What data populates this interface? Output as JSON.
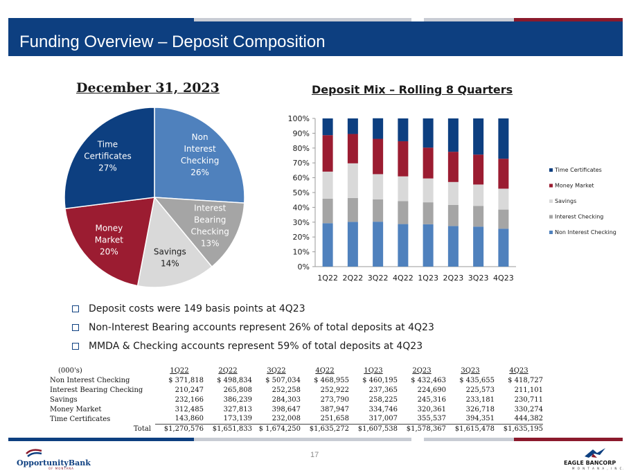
{
  "header": {
    "title": "Funding Overview – Deposit Composition"
  },
  "pie": {
    "title": "December 31, 2023",
    "slices": [
      {
        "lines": [
          "Non",
          "Interest",
          "Checking",
          "26%"
        ],
        "pct": 26,
        "color": "#4f81bd",
        "text_color": "#ffffff"
      },
      {
        "lines": [
          "Interest",
          "Bearing",
          "Checking",
          "13%"
        ],
        "pct": 13,
        "color": "#a5a5a5",
        "text_color": "#ffffff"
      },
      {
        "lines": [
          "Savings",
          "14%"
        ],
        "pct": 14,
        "color": "#d9d9d9",
        "text_color": "#1a1a1a"
      },
      {
        "lines": [
          "Money",
          "Market",
          "20%"
        ],
        "pct": 20,
        "color": "#9b1c31",
        "text_color": "#ffffff"
      },
      {
        "lines": [
          "Time",
          "Certificates",
          "27%"
        ],
        "pct": 27,
        "color": "#0d3f80",
        "text_color": "#ffffff"
      }
    ]
  },
  "chart_data": {
    "type": "bar",
    "stacked": "percent",
    "title": "Deposit Mix – Rolling 8 Quarters",
    "categories": [
      "1Q22",
      "2Q22",
      "3Q22",
      "4Q22",
      "1Q23",
      "2Q23",
      "3Q23",
      "4Q23"
    ],
    "series": [
      {
        "name": "Non Interest Checking",
        "color": "#4f81bd",
        "values": [
          29.3,
          30.2,
          30.3,
          28.7,
          28.6,
          27.4,
          27.0,
          25.6
        ]
      },
      {
        "name": "Interest Checking",
        "color": "#a5a5a5",
        "values": [
          16.5,
          16.1,
          15.1,
          15.5,
          14.8,
          14.2,
          14.0,
          12.9
        ]
      },
      {
        "name": "Savings",
        "color": "#d9d9d9",
        "values": [
          18.3,
          23.4,
          17.0,
          16.7,
          16.1,
          15.5,
          14.4,
          14.1
        ]
      },
      {
        "name": "Money Market",
        "color": "#9b1c31",
        "values": [
          24.6,
          19.8,
          23.8,
          23.7,
          20.8,
          20.4,
          20.2,
          20.2
        ]
      },
      {
        "name": "Time Certificates",
        "color": "#0d3f80",
        "values": [
          11.3,
          10.5,
          13.9,
          15.4,
          19.7,
          22.5,
          24.4,
          27.2
        ]
      }
    ],
    "y_ticks": [
      "0%",
      "10%",
      "20%",
      "30%",
      "40%",
      "50%",
      "60%",
      "70%",
      "80%",
      "90%",
      "100%"
    ],
    "ylim": [
      0,
      100
    ],
    "legend": [
      "Time Certificates",
      "Money Market",
      "Savings",
      "Interest Checking",
      "Non Interest Checking"
    ],
    "legend_placement": "right"
  },
  "bullets": [
    "Deposit costs were 149 basis points at 4Q23",
    "Non-Interest Bearing accounts represent 26% of total deposits at 4Q23",
    "MMDA & Checking accounts represent 59% of total deposits at 4Q23"
  ],
  "table": {
    "unit_label": "(000's)",
    "columns": [
      "1Q22",
      "2Q22",
      "3Q22",
      "4Q22",
      "1Q23",
      "2Q23",
      "3Q23",
      "4Q23"
    ],
    "rows": [
      {
        "label": "Non Interest Checking",
        "values": [
          "$    371,818",
          "$    498,834",
          "$    507,034",
          "$    468,955",
          "$    460,195",
          "$    432,463",
          "$    435,655",
          "$    418,727"
        ]
      },
      {
        "label": "Interest Bearing Checking",
        "values": [
          "210,247",
          "265,808",
          "252,258",
          "252,922",
          "237,365",
          "224,690",
          "225,573",
          "211,101"
        ]
      },
      {
        "label": "Savings",
        "values": [
          "232,166",
          "386,239",
          "284,303",
          "273,790",
          "258,225",
          "245,316",
          "233,181",
          "230,711"
        ]
      },
      {
        "label": "Money Market",
        "values": [
          "312,485",
          "327,813",
          "398,647",
          "387,947",
          "334,746",
          "320,361",
          "326,718",
          "330,274"
        ]
      },
      {
        "label": "Time Certificates",
        "values": [
          "143,860",
          "173,139",
          "232,008",
          "251,658",
          "317,007",
          "355,537",
          "394,351",
          "444,382"
        ]
      }
    ],
    "total": {
      "label": "Total",
      "values": [
        "$1,270,576",
        "$1,651,833",
        "$ 1,674,250",
        "$1,635,272",
        "$1,607,538",
        "$1,578,367",
        "$1,615,478",
        "$1,635,195"
      ]
    }
  },
  "footer": {
    "page": "17",
    "logo_left": "OpportunityBank",
    "logo_left_sub": "OF MONTANA",
    "logo_right": "EAGLE BANCORP",
    "logo_right_sub": "M O N T A N A , I N C."
  },
  "colors": {
    "navy": "#0d3f80",
    "maroon": "#8b1a2c",
    "gray_stripe": "#c8ccd4"
  }
}
